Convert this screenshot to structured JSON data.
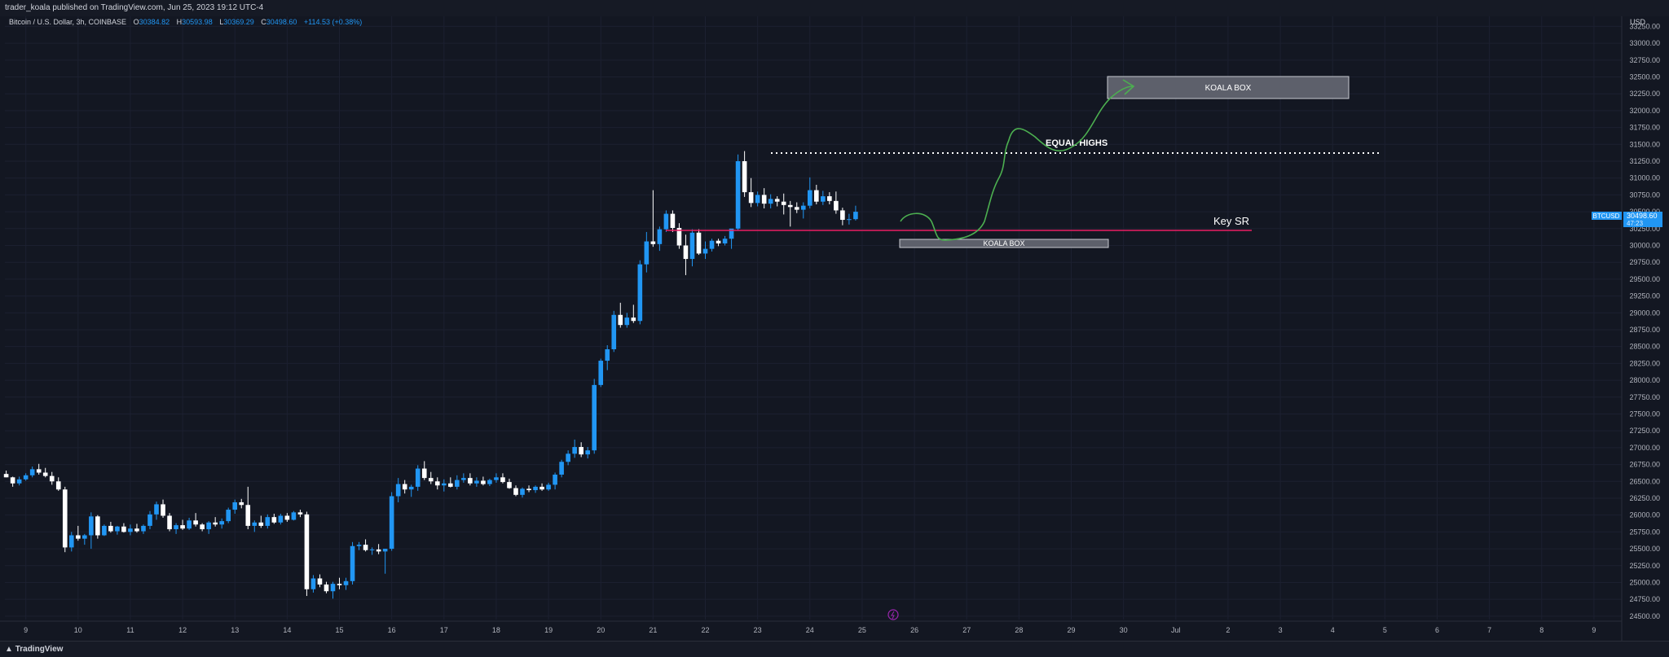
{
  "header": {
    "publish_line": "trader_koala published on TradingView.com, Jun 25, 2023 19:12 UTC-4"
  },
  "legend": {
    "symbol": "Bitcoin / U.S. Dollar, 3h, COINBASE",
    "o_label": "O",
    "o_value": "30384.82",
    "h_label": "H",
    "h_value": "30593.98",
    "l_label": "L",
    "l_value": "30369.29",
    "c_label": "C",
    "c_value": "30498.60",
    "change": "+114.53 (+0.38%)"
  },
  "footer": {
    "brand": "TradingView"
  },
  "colors": {
    "background": "#131722",
    "up_candle": "#2196f3",
    "down_candle": "#ffffff",
    "key_sr": "#e91e63",
    "projection": "#4caf50",
    "box_fill": "#5d606b"
  },
  "annotations": {
    "koala_box_top": "KOALA BOX",
    "koala_box_bottom": "KOALA BOX",
    "equal_highs": "EQUAL HIGHS",
    "key_sr": "Key SR"
  },
  "chart_data": {
    "type": "candlestick",
    "title": "Bitcoin / U.S. Dollar, 3h, COINBASE",
    "y_unit": "USD",
    "ylim": [
      24450,
      33400
    ],
    "y_ticks": [
      "24500.00",
      "24750.00",
      "25000.00",
      "25250.00",
      "25500.00",
      "25750.00",
      "26000.00",
      "26250.00",
      "26500.00",
      "26750.00",
      "27000.00",
      "27250.00",
      "27500.00",
      "27750.00",
      "28000.00",
      "28250.00",
      "28500.00",
      "28750.00",
      "29000.00",
      "29250.00",
      "29500.00",
      "29750.00",
      "30000.00",
      "30250.00",
      "30500.00",
      "30750.00",
      "31000.00",
      "31250.00",
      "31500.00",
      "31750.00",
      "32000.00",
      "32250.00",
      "32500.00",
      "32750.00",
      "33000.00",
      "33250.00"
    ],
    "x_ticks": [
      "9",
      "10",
      "11",
      "12",
      "13",
      "14",
      "15",
      "16",
      "17",
      "18",
      "19",
      "20",
      "21",
      "22",
      "23",
      "24",
      "25",
      "26",
      "27",
      "28",
      "29",
      "30",
      "Jul",
      "2",
      "3",
      "4",
      "5",
      "6",
      "7",
      "8",
      "9"
    ],
    "x_domain": {
      "start": 8.6,
      "end": 39.5,
      "note": "day index: June 9 = 9, Jul 1 = 31"
    },
    "price_label": {
      "symbol": "BTCUSD",
      "value": "30498.60",
      "countdown": "47:23"
    },
    "candles": [
      [
        8.625,
        26610,
        26660,
        26560,
        26560
      ],
      [
        8.75,
        26560,
        26570,
        26420,
        26470
      ],
      [
        8.875,
        26470,
        26570,
        26440,
        26530
      ],
      [
        9,
        26530,
        26620,
        26510,
        26590
      ],
      [
        9.125,
        26590,
        26720,
        26560,
        26680
      ],
      [
        9.25,
        26680,
        26760,
        26600,
        26630
      ],
      [
        9.375,
        26630,
        26700,
        26560,
        26580
      ],
      [
        9.5,
        26580,
        26640,
        26450,
        26500
      ],
      [
        9.625,
        26500,
        26560,
        26360,
        26380
      ],
      [
        9.75,
        26380,
        26420,
        25450,
        25520
      ],
      [
        9.875,
        25520,
        25750,
        25460,
        25700
      ],
      [
        10,
        25700,
        25840,
        25620,
        25650
      ],
      [
        10.125,
        25650,
        25720,
        25560,
        25700
      ],
      [
        10.25,
        25700,
        26040,
        25500,
        25980
      ],
      [
        10.375,
        25980,
        26000,
        25650,
        25700
      ],
      [
        10.5,
        25700,
        25860,
        25690,
        25840
      ],
      [
        10.625,
        25840,
        25900,
        25740,
        25760
      ],
      [
        10.75,
        25760,
        25840,
        25710,
        25830
      ],
      [
        10.875,
        25830,
        25880,
        25740,
        25750
      ],
      [
        11,
        25750,
        25860,
        25700,
        25800
      ],
      [
        11.125,
        25800,
        25870,
        25740,
        25760
      ],
      [
        11.25,
        25760,
        25860,
        25720,
        25840
      ],
      [
        11.375,
        25840,
        26060,
        25790,
        26010
      ],
      [
        11.5,
        26010,
        26200,
        25930,
        26160
      ],
      [
        11.625,
        26160,
        26230,
        25960,
        25990
      ],
      [
        11.75,
        25990,
        26030,
        25760,
        25790
      ],
      [
        11.875,
        25790,
        25880,
        25720,
        25850
      ],
      [
        12,
        25850,
        25930,
        25780,
        25800
      ],
      [
        12.125,
        25800,
        25960,
        25780,
        25920
      ],
      [
        12.25,
        25920,
        26030,
        25830,
        25860
      ],
      [
        12.375,
        25860,
        25880,
        25760,
        25790
      ],
      [
        12.5,
        25790,
        25910,
        25720,
        25890
      ],
      [
        12.625,
        25890,
        25970,
        25830,
        25860
      ],
      [
        12.75,
        25860,
        25950,
        25800,
        25910
      ],
      [
        12.875,
        25910,
        26110,
        25880,
        26080
      ],
      [
        13,
        26080,
        26230,
        26020,
        26190
      ],
      [
        13.125,
        26190,
        26240,
        26100,
        26150
      ],
      [
        13.25,
        26150,
        26420,
        25790,
        25840
      ],
      [
        13.375,
        25840,
        25920,
        25750,
        25890
      ],
      [
        13.5,
        25890,
        25990,
        25810,
        25840
      ],
      [
        13.625,
        25840,
        26010,
        25800,
        25970
      ],
      [
        13.75,
        25970,
        26020,
        25870,
        25890
      ],
      [
        13.875,
        25890,
        26020,
        25860,
        25990
      ],
      [
        14,
        25990,
        26030,
        25900,
        25930
      ],
      [
        14.125,
        25930,
        26060,
        25920,
        26040
      ],
      [
        14.25,
        26040,
        26080,
        25970,
        26010
      ],
      [
        14.375,
        26010,
        26050,
        24800,
        24900
      ],
      [
        14.5,
        24900,
        25110,
        24850,
        25060
      ],
      [
        14.625,
        25060,
        25120,
        24930,
        24970
      ],
      [
        14.75,
        24970,
        25010,
        24840,
        24870
      ],
      [
        14.875,
        24870,
        25010,
        24760,
        24980
      ],
      [
        15,
        24980,
        25070,
        24900,
        24960
      ],
      [
        15.125,
        24960,
        25070,
        24890,
        25020
      ],
      [
        15.25,
        25020,
        25600,
        24970,
        25540
      ],
      [
        15.375,
        25540,
        25600,
        25480,
        25560
      ],
      [
        15.5,
        25560,
        25640,
        25460,
        25480
      ],
      [
        15.625,
        25480,
        25520,
        25410,
        25490
      ],
      [
        15.75,
        25490,
        25570,
        25420,
        25460
      ],
      [
        15.875,
        25460,
        25500,
        25130,
        25500
      ],
      [
        16,
        25500,
        26340,
        25470,
        26280
      ],
      [
        16.125,
        26280,
        26550,
        26190,
        26460
      ],
      [
        16.25,
        26460,
        26520,
        26320,
        26380
      ],
      [
        16.375,
        26380,
        26450,
        26270,
        26420
      ],
      [
        16.5,
        26420,
        26740,
        26360,
        26690
      ],
      [
        16.625,
        26690,
        26800,
        26520,
        26550
      ],
      [
        16.75,
        26550,
        26640,
        26460,
        26500
      ],
      [
        16.875,
        26500,
        26560,
        26380,
        26440
      ],
      [
        17,
        26440,
        26530,
        26350,
        26470
      ],
      [
        17.125,
        26470,
        26560,
        26410,
        26420
      ],
      [
        17.25,
        26420,
        26590,
        26380,
        26520
      ],
      [
        17.375,
        26520,
        26620,
        26480,
        26550
      ],
      [
        17.5,
        26550,
        26620,
        26440,
        26470
      ],
      [
        17.625,
        26470,
        26560,
        26420,
        26510
      ],
      [
        17.75,
        26510,
        26570,
        26440,
        26460
      ],
      [
        17.875,
        26460,
        26540,
        26430,
        26520
      ],
      [
        18,
        26520,
        26620,
        26480,
        26560
      ],
      [
        18.125,
        26560,
        26620,
        26470,
        26490
      ],
      [
        18.25,
        26490,
        26540,
        26390,
        26400
      ],
      [
        18.375,
        26400,
        26440,
        26280,
        26300
      ],
      [
        18.5,
        26300,
        26410,
        26260,
        26390
      ],
      [
        18.625,
        26390,
        26440,
        26340,
        26370
      ],
      [
        18.75,
        26370,
        26440,
        26330,
        26420
      ],
      [
        18.875,
        26420,
        26470,
        26360,
        26380
      ],
      [
        19,
        26380,
        26480,
        26360,
        26450
      ],
      [
        19.125,
        26450,
        26630,
        26380,
        26600
      ],
      [
        19.25,
        26600,
        26820,
        26560,
        26790
      ],
      [
        19.375,
        26790,
        26960,
        26740,
        26910
      ],
      [
        19.5,
        26910,
        27120,
        26850,
        27010
      ],
      [
        19.625,
        27010,
        27080,
        26860,
        26900
      ],
      [
        19.75,
        26900,
        27010,
        26840,
        26960
      ],
      [
        19.875,
        26960,
        28020,
        26910,
        27930
      ],
      [
        20,
        27930,
        28320,
        27900,
        28290
      ],
      [
        20.125,
        28290,
        28520,
        28150,
        28460
      ],
      [
        20.25,
        28460,
        29030,
        28420,
        28970
      ],
      [
        20.375,
        28970,
        29150,
        28780,
        28820
      ],
      [
        20.5,
        28820,
        29000,
        28780,
        28930
      ],
      [
        20.625,
        28930,
        29120,
        28850,
        28880
      ],
      [
        20.75,
        28880,
        29780,
        28830,
        29720
      ],
      [
        20.875,
        29720,
        30200,
        29600,
        30060
      ],
      [
        21,
        30060,
        30820,
        29980,
        30020
      ],
      [
        21.125,
        30020,
        30280,
        29920,
        30240
      ],
      [
        21.25,
        30240,
        30520,
        30200,
        30470
      ],
      [
        21.375,
        30470,
        30520,
        30200,
        30260
      ],
      [
        21.5,
        30260,
        30330,
        29950,
        30000
      ],
      [
        21.625,
        30000,
        30160,
        29560,
        29800
      ],
      [
        21.75,
        29800,
        30240,
        29690,
        30190
      ],
      [
        21.875,
        30190,
        30240,
        29860,
        29880
      ],
      [
        22,
        29880,
        30060,
        29800,
        29950
      ],
      [
        22.125,
        29950,
        30100,
        29910,
        30070
      ],
      [
        22.25,
        30070,
        30100,
        29990,
        30030
      ],
      [
        22.375,
        30030,
        30140,
        30000,
        30100
      ],
      [
        22.5,
        30100,
        30200,
        29950,
        30250
      ],
      [
        22.625,
        30250,
        31350,
        30220,
        31250
      ],
      [
        22.75,
        31250,
        31400,
        30720,
        30790
      ],
      [
        22.875,
        30790,
        31000,
        30570,
        30630
      ],
      [
        23,
        30630,
        30800,
        30580,
        30750
      ],
      [
        23.125,
        30750,
        30850,
        30550,
        30620
      ],
      [
        23.25,
        30620,
        30760,
        30550,
        30690
      ],
      [
        23.375,
        30690,
        30730,
        30580,
        30650
      ],
      [
        23.5,
        30650,
        30770,
        30460,
        30600
      ],
      [
        23.625,
        30600,
        30660,
        30280,
        30570
      ],
      [
        23.75,
        30570,
        30640,
        30480,
        30530
      ],
      [
        23.875,
        30530,
        30640,
        30400,
        30590
      ],
      [
        24,
        30590,
        31010,
        30550,
        30820
      ],
      [
        24.125,
        30820,
        30900,
        30610,
        30650
      ],
      [
        24.25,
        30650,
        30810,
        30600,
        30730
      ],
      [
        24.375,
        30730,
        30790,
        30610,
        30660
      ],
      [
        24.5,
        30660,
        30800,
        30470,
        30520
      ],
      [
        24.625,
        30520,
        30560,
        30300,
        30380
      ],
      [
        24.75,
        30380,
        30470,
        30310,
        30390
      ],
      [
        24.875,
        30390,
        30590,
        30370,
        30500
      ]
    ]
  }
}
